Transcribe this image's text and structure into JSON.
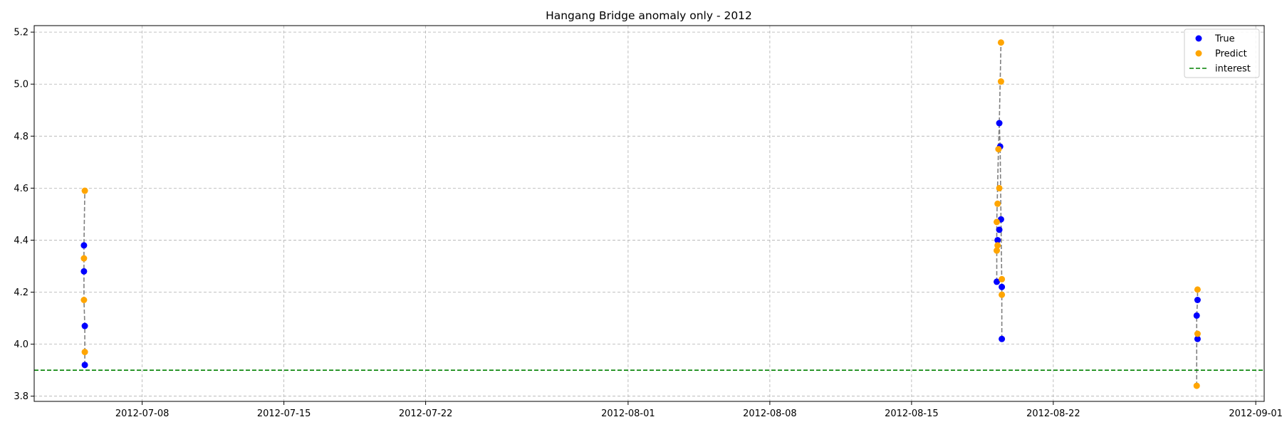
{
  "chart_data": {
    "type": "scatter",
    "title": "Hangang Bridge anomaly only - 2012",
    "xlabel": "",
    "ylabel": "",
    "x_axis": "datetime",
    "xlim": [
      "2012-07-02T16:00",
      "2012-09-01T10:00"
    ],
    "ylim": [
      3.78,
      5.225
    ],
    "x_ticks": [
      {
        "date": "2012-07-08",
        "label": "2012-07-08"
      },
      {
        "date": "2012-07-15",
        "label": "2012-07-15"
      },
      {
        "date": "2012-07-22",
        "label": "2012-07-22"
      },
      {
        "date": "2012-08-01",
        "label": "2012-08-01"
      },
      {
        "date": "2012-08-08",
        "label": "2012-08-08"
      },
      {
        "date": "2012-08-15",
        "label": "2012-08-15"
      },
      {
        "date": "2012-08-22",
        "label": "2012-08-22"
      },
      {
        "date": "2012-09-01",
        "label": "2012-09-01"
      }
    ],
    "y_ticks": [
      {
        "value": 3.8,
        "label": "3.8"
      },
      {
        "value": 4.0,
        "label": "4.0"
      },
      {
        "value": 4.2,
        "label": "4.2"
      },
      {
        "value": 4.4,
        "label": "4.4"
      },
      {
        "value": 4.6,
        "label": "4.6"
      },
      {
        "value": 4.8,
        "label": "4.8"
      },
      {
        "value": 5.0,
        "label": "5.0"
      },
      {
        "value": 5.2,
        "label": "5.2"
      }
    ],
    "grid": true,
    "legend_position": "top-right",
    "series": [
      {
        "name": "True",
        "kind": "scatter",
        "color": "#0000ff",
        "points": [
          {
            "x": "2012-07-05T03:00",
            "y": 4.38
          },
          {
            "x": "2012-07-05T03:00",
            "y": 4.28
          },
          {
            "x": "2012-07-05T04:00",
            "y": 4.07
          },
          {
            "x": "2012-07-05T04:00",
            "y": 3.92
          },
          {
            "x": "2012-08-19T05:00",
            "y": 4.24
          },
          {
            "x": "2012-08-19T06:00",
            "y": 4.4
          },
          {
            "x": "2012-08-19T08:00",
            "y": 4.44
          },
          {
            "x": "2012-08-19T08:00",
            "y": 4.85
          },
          {
            "x": "2012-08-19T09:00",
            "y": 4.76
          },
          {
            "x": "2012-08-19T10:00",
            "y": 4.48
          },
          {
            "x": "2012-08-19T11:00",
            "y": 4.22
          },
          {
            "x": "2012-08-19T11:00",
            "y": 4.02
          },
          {
            "x": "2012-08-29T03:00",
            "y": 4.17
          },
          {
            "x": "2012-08-29T02:00",
            "y": 4.11
          },
          {
            "x": "2012-08-29T03:00",
            "y": 4.02
          }
        ]
      },
      {
        "name": "Predict",
        "kind": "scatter",
        "color": "#ffa500",
        "points": [
          {
            "x": "2012-07-05T04:00",
            "y": 4.59
          },
          {
            "x": "2012-07-05T03:00",
            "y": 4.33
          },
          {
            "x": "2012-07-05T03:00",
            "y": 4.17
          },
          {
            "x": "2012-07-05T04:00",
            "y": 3.97
          },
          {
            "x": "2012-08-19T05:00",
            "y": 4.36
          },
          {
            "x": "2012-08-19T06:00",
            "y": 4.38
          },
          {
            "x": "2012-08-19T05:00",
            "y": 4.47
          },
          {
            "x": "2012-08-19T06:00",
            "y": 4.54
          },
          {
            "x": "2012-08-19T08:00",
            "y": 4.6
          },
          {
            "x": "2012-08-19T07:00",
            "y": 4.75
          },
          {
            "x": "2012-08-19T10:00",
            "y": 5.01
          },
          {
            "x": "2012-08-19T10:00",
            "y": 5.16
          },
          {
            "x": "2012-08-19T11:00",
            "y": 4.25
          },
          {
            "x": "2012-08-19T11:00",
            "y": 4.19
          },
          {
            "x": "2012-08-29T03:00",
            "y": 4.21
          },
          {
            "x": "2012-08-29T03:00",
            "y": 4.04
          },
          {
            "x": "2012-08-29T02:00",
            "y": 3.84
          }
        ]
      },
      {
        "name": "interest",
        "kind": "hline",
        "color": "#008000",
        "linestyle": "dashed",
        "y": 3.9
      }
    ],
    "connector_lines": {
      "color": "#808080",
      "linestyle": "dashed",
      "groups": [
        [
          {
            "x": "2012-07-05T04:00",
            "y": 3.92
          },
          {
            "x": "2012-07-05T04:00",
            "y": 4.07
          },
          {
            "x": "2012-07-05T03:00",
            "y": 4.17
          },
          {
            "x": "2012-07-05T03:00",
            "y": 4.28
          },
          {
            "x": "2012-07-05T03:00",
            "y": 4.38
          },
          {
            "x": "2012-07-05T04:00",
            "y": 4.59
          }
        ],
        [
          {
            "x": "2012-08-19T05:00",
            "y": 4.24
          },
          {
            "x": "2012-08-19T05:00",
            "y": 4.47
          },
          {
            "x": "2012-08-19T07:00",
            "y": 4.75
          },
          {
            "x": "2012-08-19T08:00",
            "y": 4.85
          },
          {
            "x": "2012-08-19T10:00",
            "y": 5.16
          }
        ],
        [
          {
            "x": "2012-08-19T08:00",
            "y": 4.85
          },
          {
            "x": "2012-08-19T09:00",
            "y": 4.76
          },
          {
            "x": "2012-08-19T10:00",
            "y": 4.48
          },
          {
            "x": "2012-08-19T11:00",
            "y": 4.22
          },
          {
            "x": "2012-08-19T11:00",
            "y": 4.02
          }
        ],
        [
          {
            "x": "2012-08-29T02:00",
            "y": 3.84
          },
          {
            "x": "2012-08-29T02:00",
            "y": 4.11
          },
          {
            "x": "2012-08-29T03:00",
            "y": 4.17
          },
          {
            "x": "2012-08-29T03:00",
            "y": 4.21
          }
        ]
      ]
    }
  }
}
